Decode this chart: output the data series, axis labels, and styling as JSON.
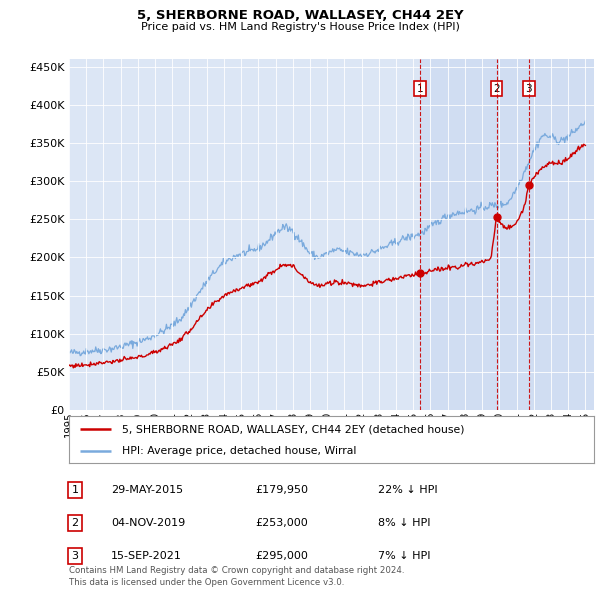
{
  "title": "5, SHERBORNE ROAD, WALLASEY, CH44 2EY",
  "subtitle": "Price paid vs. HM Land Registry's House Price Index (HPI)",
  "background_color": "#ffffff",
  "plot_bg_color": "#dce6f5",
  "plot_bg_highlight": "#c8d8f0",
  "red_line_color": "#cc0000",
  "blue_line_color": "#7aaadd",
  "grid_color": "#ffffff",
  "transactions": [
    {
      "date": "29-MAY-2015",
      "x": 2015.41,
      "price": 179950,
      "label": "1"
    },
    {
      "date": "04-NOV-2019",
      "x": 2019.84,
      "price": 253000,
      "label": "2"
    },
    {
      "date": "15-SEP-2021",
      "x": 2021.71,
      "price": 295000,
      "label": "3"
    }
  ],
  "legend_entries": [
    "5, SHERBORNE ROAD, WALLASEY, CH44 2EY (detached house)",
    "HPI: Average price, detached house, Wirral"
  ],
  "table_rows": [
    [
      "1",
      "29-MAY-2015",
      "£179,950",
      "22% ↓ HPI"
    ],
    [
      "2",
      "04-NOV-2019",
      "£253,000",
      "8% ↓ HPI"
    ],
    [
      "3",
      "15-SEP-2021",
      "£295,000",
      "7% ↓ HPI"
    ]
  ],
  "footer": "Contains HM Land Registry data © Crown copyright and database right 2024.\nThis data is licensed under the Open Government Licence v3.0.",
  "ylim": [
    0,
    460000
  ],
  "yticks": [
    0,
    50000,
    100000,
    150000,
    200000,
    250000,
    300000,
    350000,
    400000,
    450000
  ],
  "xmin": 1995,
  "xmax": 2025.5
}
